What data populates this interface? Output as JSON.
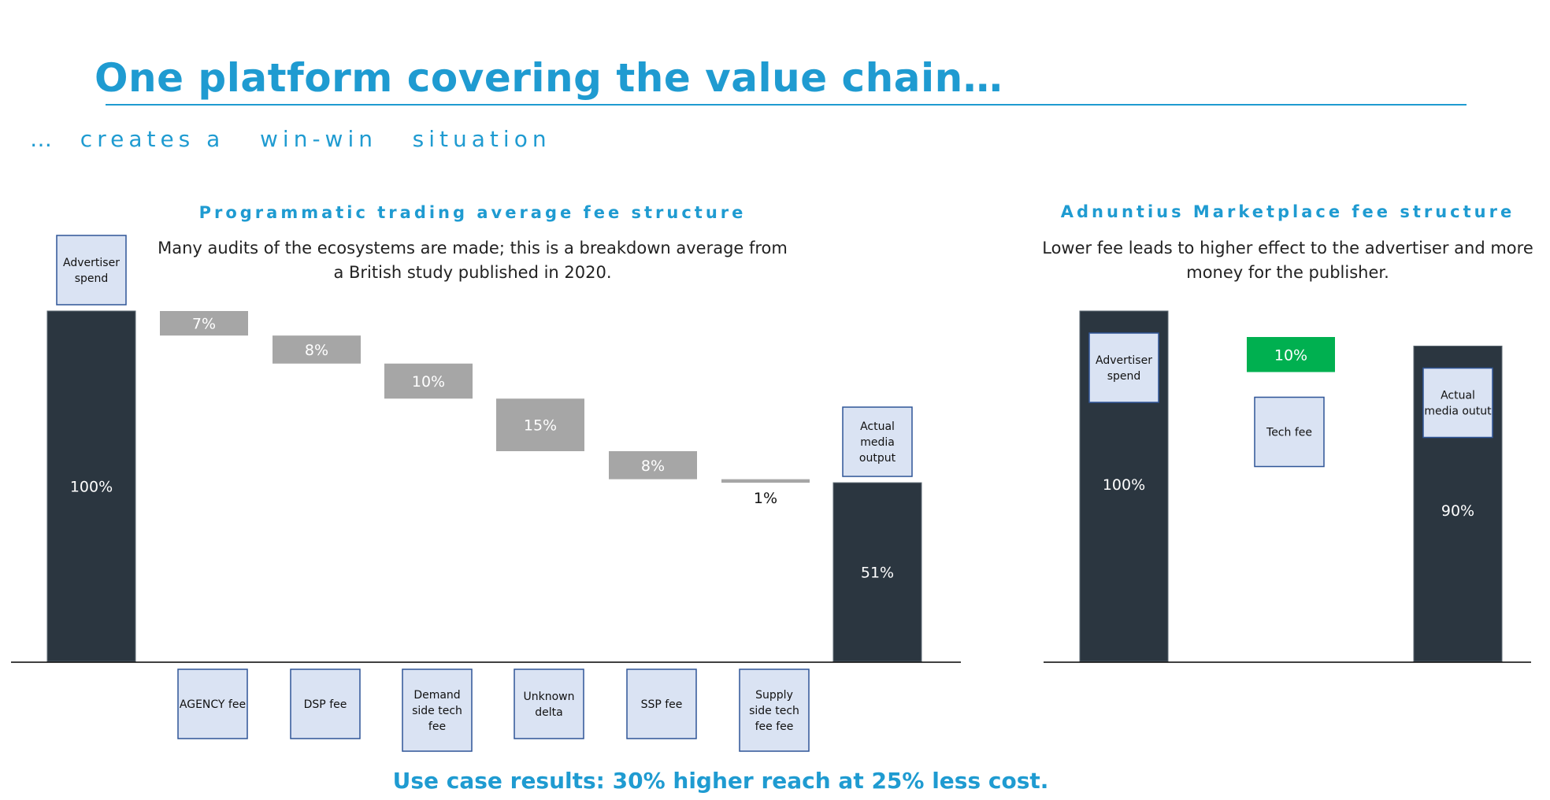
{
  "slide": {
    "title": "One platform covering the value chain…",
    "subtitle": "…  creates a   win-win   situation",
    "footer": "Use case results: 30% higher reach at 25% less cost."
  },
  "colors": {
    "accent": "#1f9bd1",
    "total_bar": "#2b3640",
    "step_bar": "#a6a6a6",
    "positive_bar": "#00b050",
    "label_box_fill": "#dae3f3",
    "label_box_border": "#2f5597"
  },
  "chart_data": [
    {
      "type": "bar",
      "subtype": "waterfall",
      "title": "Programmatic trading average fee structure",
      "description": "Many audits of the ecosystems are made; this is a breakdown average from a British study published in 2020.",
      "ylim": [
        0,
        100
      ],
      "steps": [
        {
          "kind": "total",
          "value": 100,
          "label": "100%",
          "category": "Advertiser spend",
          "category_position": "top"
        },
        {
          "kind": "decrease",
          "value": 7,
          "label": "7%",
          "category": "AGENCY fee",
          "category_position": "bottom"
        },
        {
          "kind": "decrease",
          "value": 8,
          "label": "8%",
          "category": "DSP fee",
          "category_position": "bottom"
        },
        {
          "kind": "decrease",
          "value": 10,
          "label": "10%",
          "category": "Demand side tech fee",
          "category_position": "bottom"
        },
        {
          "kind": "decrease",
          "value": 15,
          "label": "15%",
          "category": "Unknown delta",
          "category_position": "bottom"
        },
        {
          "kind": "decrease",
          "value": 8,
          "label": "8%",
          "category": "SSP fee",
          "category_position": "bottom"
        },
        {
          "kind": "decrease",
          "value": 1,
          "label": "1%",
          "category": "Supply side tech fee fee",
          "category_position": "bottom"
        },
        {
          "kind": "total",
          "value": 51,
          "label": "51%",
          "category": "Actual media output",
          "category_position": "top"
        }
      ]
    },
    {
      "type": "bar",
      "subtype": "waterfall",
      "title": "Adnuntius Marketplace fee structure",
      "description": "Lower fee leads to higher effect to the advertiser and more money for the publisher.",
      "ylim": [
        0,
        100
      ],
      "steps": [
        {
          "kind": "total",
          "value": 100,
          "label": "100%",
          "category": "Advertiser spend",
          "category_position": "inside"
        },
        {
          "kind": "decrease",
          "value": 10,
          "label": "10%",
          "category": "Tech fee",
          "category_position": "below"
        },
        {
          "kind": "total",
          "value": 90,
          "label": "90%",
          "category": "Actual media outut",
          "category_position": "inside"
        }
      ]
    }
  ]
}
